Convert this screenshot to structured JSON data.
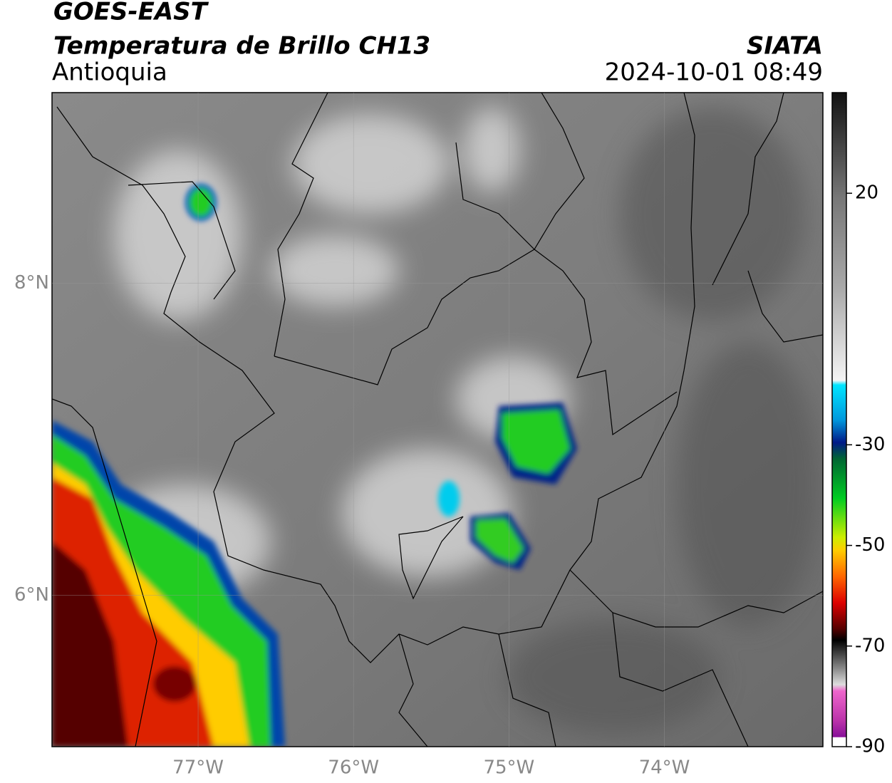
{
  "header": {
    "title": "GOES-EAST",
    "subtitle": "Temperatura de Brillo CH13",
    "region": "Antioquia",
    "source": "SIATA",
    "datetime": "2024-10-01 08:49"
  },
  "map": {
    "lonlim": [
      -77.94,
      -72.98
    ],
    "latlim": [
      5.03,
      9.22
    ],
    "xticks": [
      {
        "value": -77,
        "label": "77°W"
      },
      {
        "value": -76,
        "label": "76°W"
      },
      {
        "value": -75,
        "label": "75°W"
      },
      {
        "value": -74,
        "label": "74°W"
      }
    ],
    "yticks": [
      {
        "value": 8,
        "label": "8°N"
      },
      {
        "value": 6,
        "label": "6°N"
      }
    ],
    "grid": true
  },
  "colorbar": {
    "clim": [
      -90,
      40
    ],
    "ticks": [
      -90,
      -70,
      -50,
      -30,
      20
    ]
  }
}
